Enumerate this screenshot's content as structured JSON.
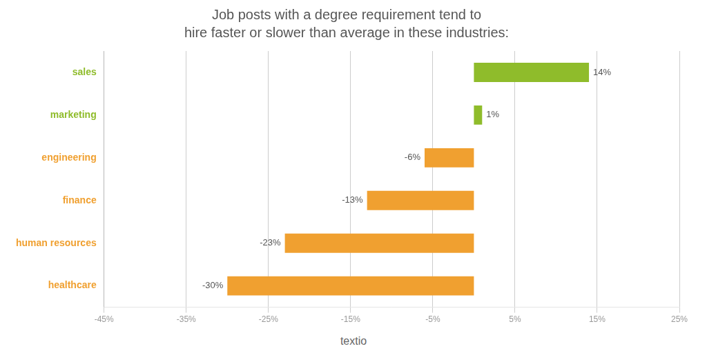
{
  "chart_data": {
    "type": "bar",
    "orientation": "horizontal",
    "title": "Job posts with a degree requirement tend to",
    "subtitle": "hire faster or slower than average in these industries:",
    "categories": [
      "sales",
      "marketing",
      "engineering",
      "finance",
      "human resources",
      "healthcare"
    ],
    "values": [
      14,
      1,
      -6,
      -13,
      -23,
      -30
    ],
    "value_labels": [
      "14%",
      "1%",
      "-6%",
      "-13%",
      "-23%",
      "-30%"
    ],
    "colors": [
      "#8fbc2b",
      "#8fbc2b",
      "#f0a030",
      "#f0a030",
      "#f0a030",
      "#f0a030"
    ],
    "xlim": [
      -45,
      25
    ],
    "xticks": [
      {
        "value": -45,
        "label": "-45%"
      },
      {
        "value": -35,
        "label": "-35%"
      },
      {
        "value": -25,
        "label": "-25%"
      },
      {
        "value": -15,
        "label": "-15%"
      },
      {
        "value": -5,
        "label": "-5%"
      },
      {
        "value": 5,
        "label": "5%"
      },
      {
        "value": 15,
        "label": "15%"
      },
      {
        "value": 25,
        "label": "25%"
      }
    ],
    "grid": true,
    "data_labels": true,
    "annotations": [
      "textio"
    ]
  }
}
